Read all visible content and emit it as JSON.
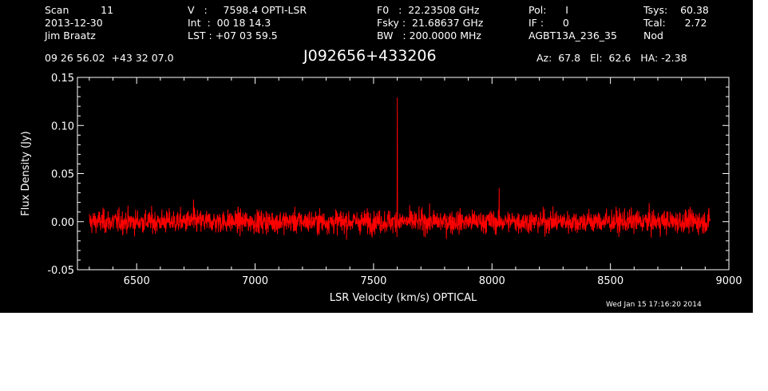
{
  "header": {
    "col1": [
      "Scan          11",
      "2013-12-30",
      "Jim Braatz"
    ],
    "col2": [
      "V   :     7598.4 OPTI-LSR",
      "Int  :  00 18 14.3",
      "LST : +07 03 59.5"
    ],
    "col3": [
      "F0   :  22.23508 GHz",
      "Fsky :  21.68637 GHz",
      "BW   : 200.0000 MHz"
    ],
    "col4": [
      "Pol:      I",
      "IF :      0",
      "AGBT13A_236_35"
    ],
    "col5": [
      "Tsys:    60.38",
      "Tcal:      2.72",
      "Nod"
    ],
    "coords": "09 26 56.02  +43 32 07.0",
    "source": "J092656+433206",
    "pointing": "Az:  67.8   El:  62.6   HA: -2.38",
    "timestamp": "Wed Jan 15 17:16:20 2014"
  },
  "colors": {
    "background": "#000000",
    "foreground": "#ffffff",
    "series": "#ff0000"
  },
  "chart_data": {
    "type": "line",
    "xlabel": "LSR Velocity (km/s) OPTICAL",
    "ylabel": "Flux Density (Jy)",
    "xlim": [
      6250,
      9000
    ],
    "ylim": [
      -0.05,
      0.15
    ],
    "xticks": [
      6500,
      7000,
      7500,
      8000,
      8500,
      9000
    ],
    "xtick_labels": [
      "6500",
      "7000",
      "7500",
      "8000",
      "8500",
      "9000"
    ],
    "yticks": [
      -0.05,
      0.0,
      0.05,
      0.1,
      0.15
    ],
    "ytick_labels": [
      "-0.05",
      "0.00",
      "0.05",
      "0.10",
      "0.15"
    ],
    "grid": false,
    "series": [
      {
        "x_range": [
          6300,
          8920
        ],
        "noise_rms": 0.006,
        "peaks": [
          {
            "x": 6740,
            "y": 0.023
          },
          {
            "x": 7600,
            "y": 0.129
          },
          {
            "x": 8030,
            "y": 0.035
          }
        ]
      }
    ]
  }
}
